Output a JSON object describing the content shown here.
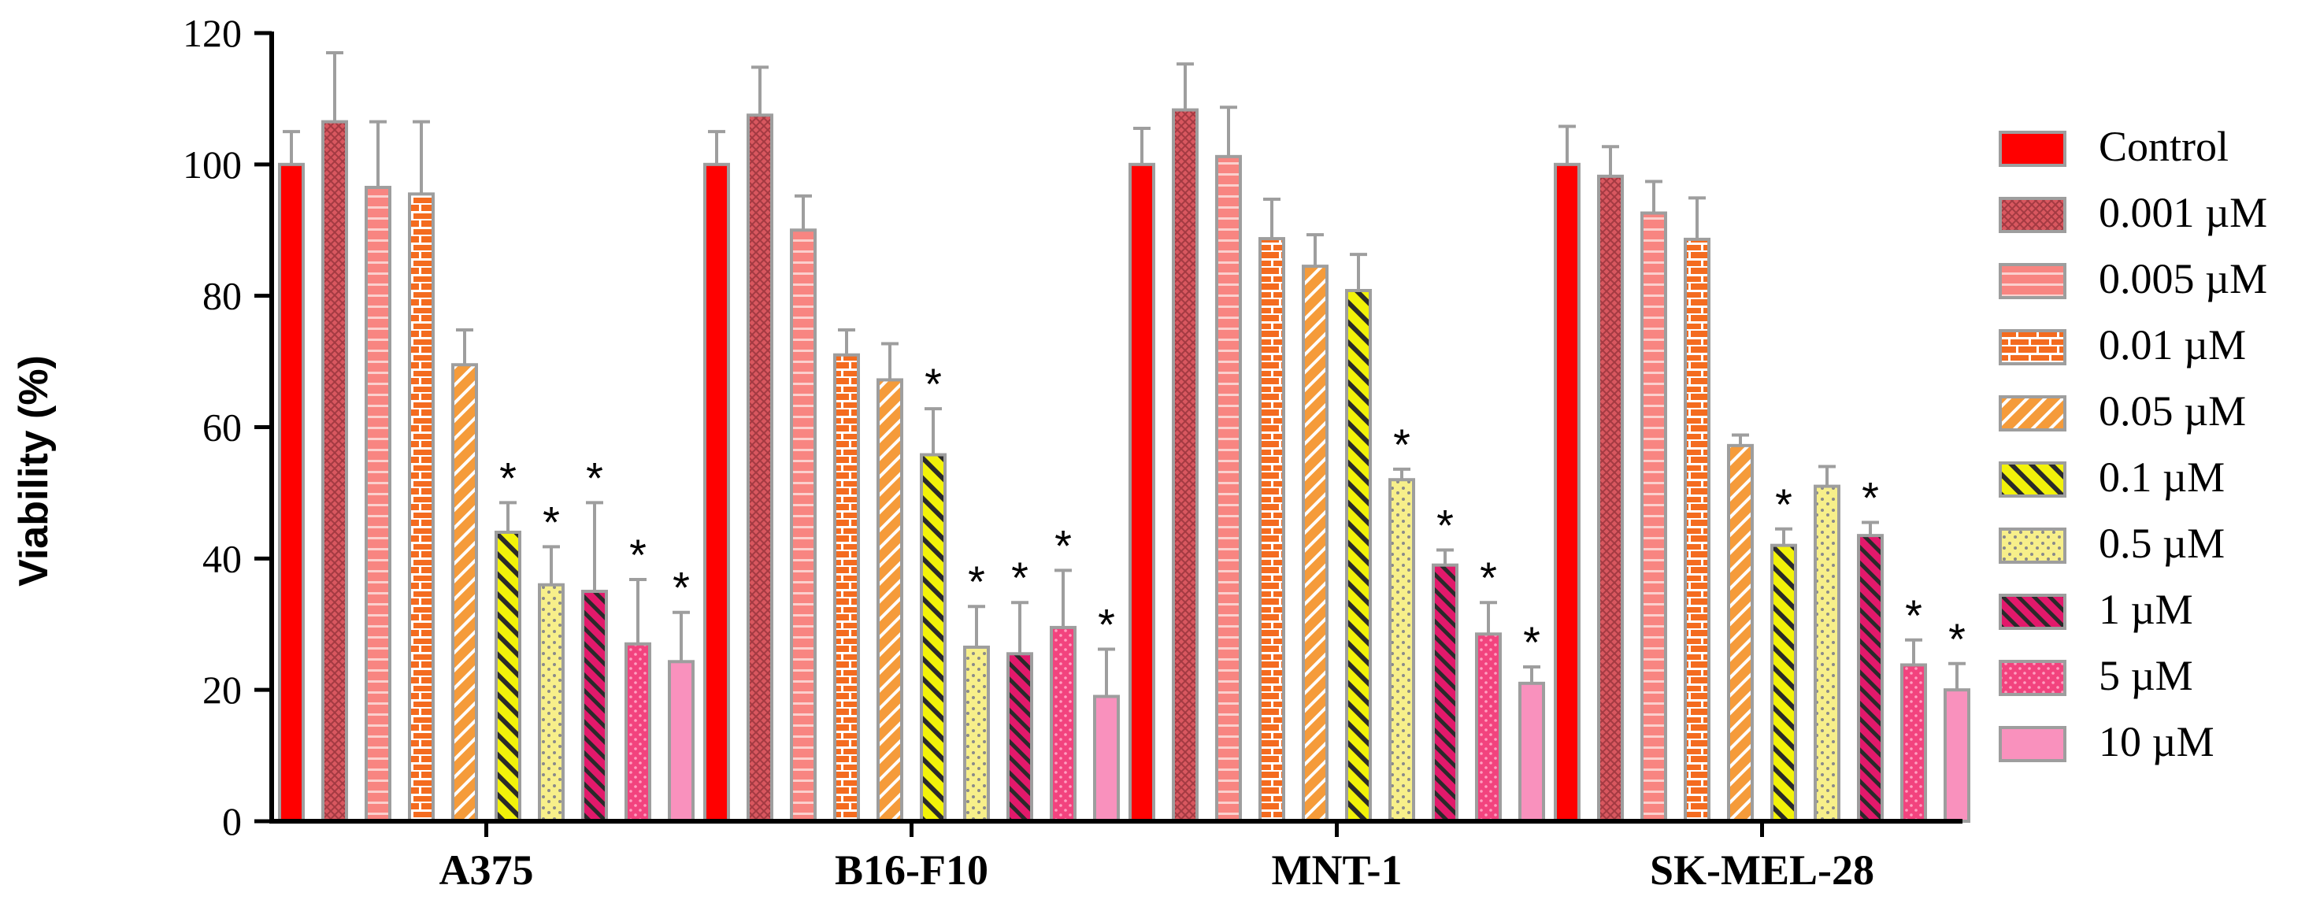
{
  "chart_data": {
    "type": "bar",
    "title": "",
    "xlabel": "",
    "ylabel": "Viability (%)",
    "ylim": [
      0,
      120
    ],
    "yticks": [
      "0",
      "20",
      "40",
      "60",
      "80",
      "100",
      "120"
    ],
    "categories": [
      "A375",
      "B16-F10",
      "MNT-1",
      "SK-MEL-28"
    ],
    "legend_position": "right",
    "significance_marker": "*",
    "series": [
      {
        "name": "Control",
        "color": "#ff0000",
        "pattern": "solid",
        "values": [
          100,
          100,
          100,
          100
        ],
        "errors": [
          5,
          5,
          5.5,
          5.8
        ],
        "significant": [
          false,
          false,
          false,
          false
        ]
      },
      {
        "name": "0.001 µM",
        "color": "#d9575f",
        "pattern": "crosshatch",
        "values": [
          106.5,
          107.5,
          108.3,
          98.2
        ],
        "errors": [
          10.5,
          7.3,
          7,
          4.5
        ],
        "significant": [
          false,
          false,
          false,
          false
        ]
      },
      {
        "name": "0.005 µM",
        "color": "#f88581",
        "pattern": "hlines",
        "values": [
          96.5,
          90,
          101.2,
          92.6
        ],
        "errors": [
          10,
          5.2,
          7.5,
          4.8
        ],
        "significant": [
          false,
          false,
          false,
          false
        ]
      },
      {
        "name": "0.01 µM",
        "color": "#f46b1f",
        "pattern": "brick",
        "values": [
          95.5,
          71,
          88.7,
          88.6
        ],
        "errors": [
          11,
          3.8,
          6,
          6.3
        ],
        "significant": [
          false,
          false,
          false,
          false
        ]
      },
      {
        "name": "0.05 µM",
        "color": "#f59b3a",
        "pattern": "diag",
        "values": [
          69.5,
          67.2,
          84.5,
          57.2
        ],
        "errors": [
          5.3,
          5.5,
          4.8,
          1.6
        ],
        "significant": [
          false,
          false,
          false,
          false
        ]
      },
      {
        "name": "0.1 µM",
        "color": "#f2f20a",
        "pattern": "diagwide",
        "values": [
          44,
          55.8,
          80.8,
          42
        ],
        "errors": [
          4.5,
          7,
          5.5,
          2.5
        ],
        "significant": [
          true,
          true,
          false,
          true
        ]
      },
      {
        "name": "0.5 µM",
        "color": "#f7ef8a",
        "pattern": "dots",
        "values": [
          36,
          26.5,
          52,
          51
        ],
        "errors": [
          5.8,
          6.2,
          1.6,
          3
        ],
        "significant": [
          true,
          true,
          true,
          false
        ]
      },
      {
        "name": "1 µM",
        "color": "#e2196b",
        "pattern": "diagdense",
        "values": [
          35,
          25.5,
          39,
          43.5
        ],
        "errors": [
          13.5,
          7.8,
          2.3,
          2
        ],
        "significant": [
          true,
          true,
          true,
          true
        ]
      },
      {
        "name": "5 µM",
        "color": "#f2437e",
        "pattern": "dots2",
        "values": [
          27,
          29.5,
          28.5,
          23.8
        ],
        "errors": [
          9.8,
          8.7,
          4.8,
          3.8
        ],
        "significant": [
          true,
          true,
          true,
          true
        ]
      },
      {
        "name": "10 µM",
        "color": "#f991bd",
        "pattern": "solid",
        "values": [
          24.3,
          19,
          21,
          20
        ],
        "errors": [
          7.5,
          7.2,
          2.5,
          4
        ],
        "significant": [
          true,
          true,
          true,
          true
        ]
      }
    ]
  }
}
